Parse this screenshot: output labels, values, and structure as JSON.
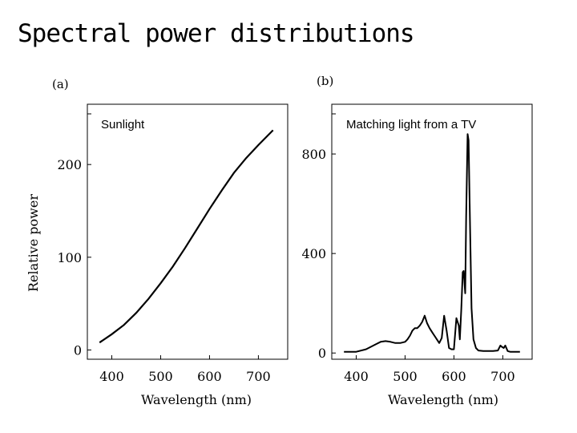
{
  "slide": {
    "title": "Spectral power distributions"
  },
  "chart_data": [
    {
      "type": "line",
      "panel_label": "(a)",
      "title": "Sunlight",
      "xlabel": "Wavelength (nm)",
      "ylabel": "Relative power",
      "xlim": [
        350,
        760
      ],
      "ylim": [
        -10,
        265
      ],
      "xticks": [
        400,
        500,
        600,
        700
      ],
      "yticks": [
        0,
        100,
        200
      ],
      "tick_labels_x": [
        "400",
        "500",
        "600",
        "700"
      ],
      "tick_labels_y": [
        "0",
        "100",
        "200"
      ],
      "series": [
        {
          "name": "Sunlight",
          "x": [
            375,
            400,
            425,
            450,
            475,
            500,
            525,
            550,
            575,
            600,
            625,
            650,
            675,
            700,
            730
          ],
          "y": [
            8,
            17,
            27,
            40,
            55,
            72,
            90,
            110,
            131,
            152,
            172,
            191,
            207,
            221,
            237
          ]
        }
      ]
    },
    {
      "type": "line",
      "panel_label": "(b)",
      "title": "Matching light from a TV",
      "xlabel": "Wavelength (nm)",
      "ylabel": "",
      "xlim": [
        350,
        760
      ],
      "ylim": [
        -25,
        1000
      ],
      "xticks": [
        400,
        500,
        600,
        700
      ],
      "yticks": [
        0,
        400,
        800
      ],
      "tick_labels_x": [
        "400",
        "500",
        "600",
        "700"
      ],
      "tick_labels_y": [
        "0",
        "400",
        "800"
      ],
      "series": [
        {
          "name": "Matching light from a TV",
          "x": [
            375,
            400,
            420,
            440,
            450,
            460,
            470,
            480,
            490,
            500,
            505,
            510,
            515,
            520,
            525,
            530,
            535,
            540,
            545,
            550,
            555,
            560,
            565,
            570,
            575,
            580,
            585,
            590,
            595,
            600,
            605,
            610,
            612,
            615,
            618,
            620,
            623,
            625,
            628,
            630,
            633,
            636,
            640,
            645,
            650,
            660,
            670,
            680,
            690,
            695,
            698,
            702,
            705,
            710,
            715,
            720,
            735
          ],
          "y": [
            5,
            5,
            15,
            35,
            45,
            48,
            45,
            40,
            40,
            45,
            55,
            70,
            90,
            100,
            100,
            110,
            125,
            150,
            120,
            100,
            85,
            70,
            55,
            40,
            60,
            150,
            90,
            20,
            15,
            15,
            140,
            110,
            55,
            175,
            325,
            330,
            240,
            550,
            880,
            855,
            500,
            180,
            55,
            20,
            10,
            8,
            8,
            8,
            10,
            30,
            25,
            20,
            30,
            8,
            5,
            5,
            5
          ]
        }
      ]
    }
  ]
}
